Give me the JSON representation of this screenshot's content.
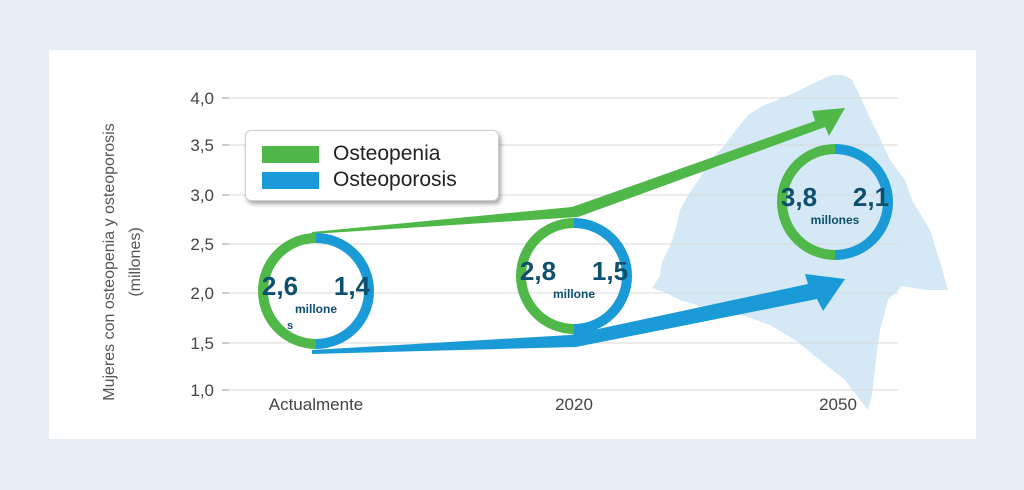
{
  "colors": {
    "osteopenia": "#50b848",
    "osteoporosis": "#1a9ad6",
    "map": "#d4e8f5",
    "value_text": "#0d4f6e",
    "gridline": "#d9d9d9",
    "axis_text": "#444444"
  },
  "chart_data": {
    "type": "line",
    "title": "",
    "xlabel": "",
    "ylabel": "Mujeres con osteopenia y osteoporosis\n(millones)",
    "categories": [
      "Actualmente",
      "2020",
      "2050"
    ],
    "y_ticks": [
      "4,0",
      "3,5",
      "3,0",
      "2,5",
      "2,0",
      "1,5",
      "1,0"
    ],
    "ylim": [
      1.0,
      4.0
    ],
    "grid": true,
    "legend": "top-left",
    "series": [
      {
        "name": "Osteopenia",
        "values": [
          2.6,
          2.8,
          3.8
        ]
      },
      {
        "name": "Osteoporosis",
        "values": [
          1.4,
          1.5,
          2.1
        ]
      }
    ],
    "annotations": [
      {
        "category": "Actualmente",
        "osteopenia_label": "2,6",
        "osteoporosis_label": "1,4",
        "unit": "millone",
        "unit_extra": "s"
      },
      {
        "category": "2020",
        "osteopenia_label": "2,8",
        "osteoporosis_label": "1,5",
        "unit": "millone",
        "unit_extra": ""
      },
      {
        "category": "2050",
        "osteopenia_label": "3,8",
        "osteoporosis_label": "2,1",
        "unit": "millones",
        "unit_extra": ""
      }
    ]
  }
}
